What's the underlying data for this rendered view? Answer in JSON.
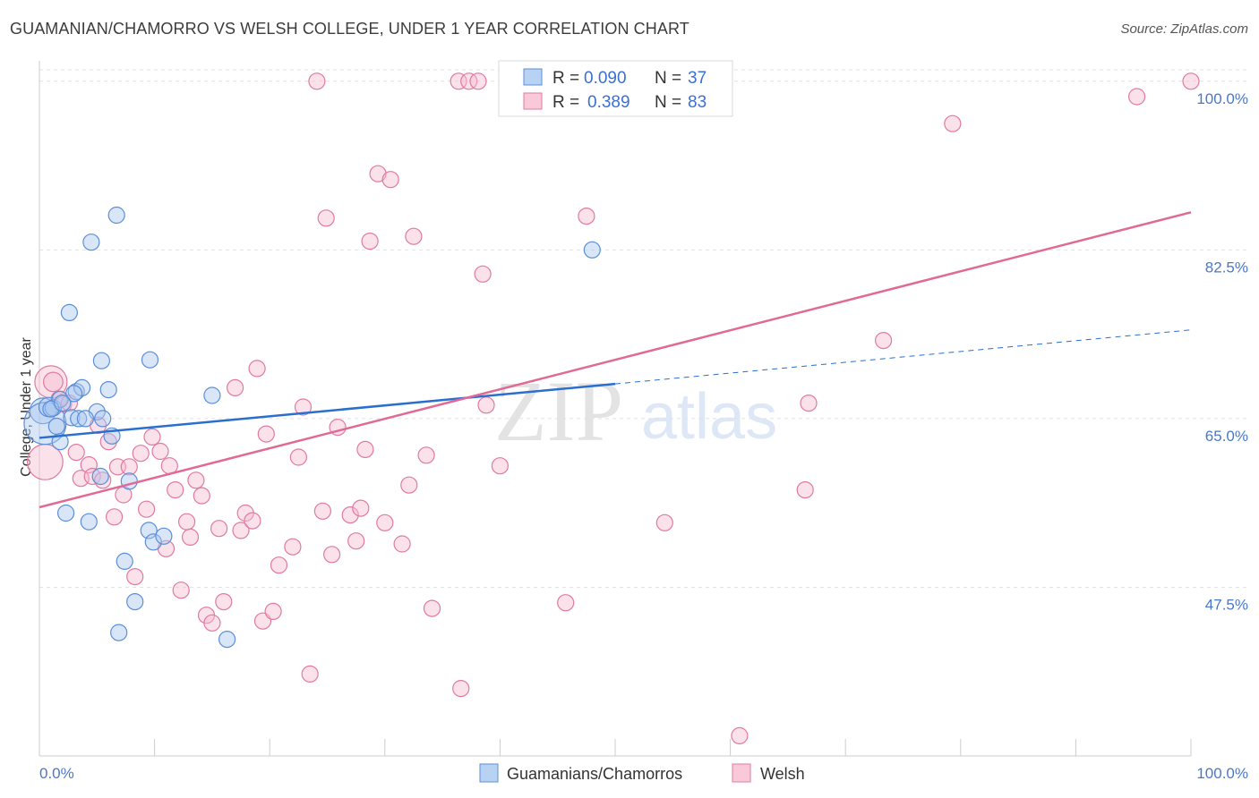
{
  "title": "GUAMANIAN/CHAMORRO VS WELSH COLLEGE, UNDER 1 YEAR CORRELATION CHART",
  "source": "Source: ZipAtlas.com",
  "watermark": {
    "zip": "ZIP",
    "atlas": "atlas"
  },
  "colors": {
    "blue_fill": "#aac7f0",
    "blue_stroke": "#5b8ed8",
    "blue_line": "#2a6fcf",
    "pink_fill": "#f6bcd0",
    "pink_stroke": "#e07aa0",
    "pink_line": "#e06a95",
    "grid": "#e2e2e2",
    "axis": "#cccccc",
    "accent_text": "#4a78c8"
  },
  "legend": {
    "entries": [
      {
        "r_label": "R =",
        "r_value": "0.090",
        "n_label": "N =",
        "n_value": "37",
        "series": "blue"
      },
      {
        "r_label": "R =",
        "r_value": "0.389",
        "n_label": "N =",
        "n_value": "83",
        "series": "pink"
      }
    ]
  },
  "chart_data": {
    "type": "scatter",
    "title": "GUAMANIAN/CHAMORRO VS WELSH COLLEGE, UNDER 1 YEAR CORRELATION CHART",
    "xlabel": "",
    "ylabel": "College, Under 1 year",
    "xlim": [
      0,
      100
    ],
    "ylim": [
      32,
      102
    ],
    "x_tick_labels": [
      "0.0%",
      "100.0%"
    ],
    "y_ticks": [
      47.5,
      65.0,
      82.5,
      100.0
    ],
    "y_tick_labels": [
      "47.5%",
      "65.0%",
      "82.5%",
      "100.0%"
    ],
    "legend_position": "top-center",
    "series": [
      {
        "name": "Guamanians/Chamorros",
        "color": "blue",
        "R": 0.09,
        "N": 37,
        "trend": {
          "x0": 0,
          "y0": 63.0,
          "x1": 50,
          "y1": 68.6,
          "dashed_to_x": 100,
          "dashed_to_y": 74.2
        },
        "points": [
          [
            0.3,
            65.8,
            1.6
          ],
          [
            0.5,
            64.5,
            2.6
          ],
          [
            0.8,
            66.2,
            1.2
          ],
          [
            1.2,
            66.1,
            1.0
          ],
          [
            1.5,
            64.2,
            1.0
          ],
          [
            1.8,
            62.6,
            1.0
          ],
          [
            1.8,
            67.0,
            1.0
          ],
          [
            2.3,
            55.2,
            1.0
          ],
          [
            2.6,
            76.0,
            1.0
          ],
          [
            2.8,
            65.1,
            1.0
          ],
          [
            3.2,
            67.8,
            1.0
          ],
          [
            3.7,
            68.2,
            1.0
          ],
          [
            3.4,
            65.0,
            1.0
          ],
          [
            4.3,
            54.3,
            1.0
          ],
          [
            4.5,
            83.3,
            1.0
          ],
          [
            5.0,
            65.7,
            1.0
          ],
          [
            5.3,
            59.0,
            1.0
          ],
          [
            5.4,
            71.0,
            1.0
          ],
          [
            5.5,
            65.0,
            1.0
          ],
          [
            6.0,
            68.0,
            1.0
          ],
          [
            6.3,
            63.2,
            1.0
          ],
          [
            6.7,
            86.1,
            1.0
          ],
          [
            6.9,
            42.8,
            1.0
          ],
          [
            7.4,
            50.2,
            1.0
          ],
          [
            7.8,
            58.5,
            1.0
          ],
          [
            8.3,
            46.0,
            1.0
          ],
          [
            9.5,
            53.4,
            1.0
          ],
          [
            9.6,
            71.1,
            1.0
          ],
          [
            9.9,
            52.2,
            1.0
          ],
          [
            10.8,
            52.8,
            1.0
          ],
          [
            15.0,
            67.4,
            1.0
          ],
          [
            16.3,
            42.1,
            1.0
          ],
          [
            48.0,
            82.5,
            1.0
          ],
          [
            3.0,
            67.6,
            1.0
          ],
          [
            1.0,
            66.0,
            1.0
          ],
          [
            2.0,
            66.6,
            1.0
          ],
          [
            4.0,
            65.0,
            1.0
          ]
        ]
      },
      {
        "name": "Welsh",
        "color": "pink",
        "R": 0.389,
        "N": 83,
        "trend": {
          "x0": 0,
          "y0": 55.8,
          "x1": 100,
          "y1": 86.4
        },
        "points": [
          [
            0.5,
            60.5,
            2.2
          ],
          [
            1.0,
            68.8,
            2.0
          ],
          [
            1.2,
            68.8,
            1.2
          ],
          [
            1.7,
            67.0,
            1.0
          ],
          [
            2.1,
            66.5,
            1.0
          ],
          [
            2.6,
            66.6,
            1.0
          ],
          [
            3.2,
            61.5,
            1.0
          ],
          [
            3.6,
            58.8,
            1.0
          ],
          [
            4.3,
            60.2,
            1.0
          ],
          [
            4.6,
            59.0,
            1.0
          ],
          [
            5.1,
            64.3,
            1.0
          ],
          [
            5.5,
            58.6,
            1.0
          ],
          [
            6.0,
            62.6,
            1.0
          ],
          [
            6.5,
            54.8,
            1.0
          ],
          [
            6.8,
            60.0,
            1.0
          ],
          [
            7.3,
            57.1,
            1.0
          ],
          [
            7.8,
            60.0,
            1.0
          ],
          [
            8.3,
            48.6,
            1.0
          ],
          [
            8.8,
            61.4,
            1.0
          ],
          [
            9.3,
            55.6,
            1.0
          ],
          [
            9.8,
            63.1,
            1.0
          ],
          [
            10.5,
            61.6,
            1.0
          ],
          [
            11.0,
            51.5,
            1.0
          ],
          [
            11.3,
            60.1,
            1.0
          ],
          [
            11.8,
            57.6,
            1.0
          ],
          [
            12.3,
            47.2,
            1.0
          ],
          [
            12.8,
            54.3,
            1.0
          ],
          [
            13.1,
            52.7,
            1.0
          ],
          [
            13.6,
            58.6,
            1.0
          ],
          [
            14.1,
            57.0,
            1.0
          ],
          [
            14.5,
            44.6,
            1.0
          ],
          [
            15.0,
            43.8,
            1.0
          ],
          [
            15.6,
            53.6,
            1.0
          ],
          [
            16.0,
            46.0,
            1.0
          ],
          [
            17.0,
            68.2,
            1.0
          ],
          [
            17.5,
            53.4,
            1.0
          ],
          [
            17.9,
            55.2,
            1.0
          ],
          [
            18.5,
            54.4,
            1.0
          ],
          [
            18.9,
            70.2,
            1.0
          ],
          [
            19.4,
            44.0,
            1.0
          ],
          [
            19.7,
            63.4,
            1.0
          ],
          [
            20.3,
            45.0,
            1.0
          ],
          [
            20.8,
            49.8,
            1.0
          ],
          [
            22.0,
            51.7,
            1.0
          ],
          [
            22.5,
            61.0,
            1.0
          ],
          [
            22.9,
            66.2,
            1.0
          ],
          [
            23.5,
            38.5,
            1.0
          ],
          [
            24.1,
            100.0,
            1.0
          ],
          [
            24.6,
            55.4,
            1.0
          ],
          [
            24.9,
            85.8,
            1.0
          ],
          [
            25.4,
            50.9,
            1.0
          ],
          [
            25.9,
            64.1,
            1.0
          ],
          [
            27.0,
            55.0,
            1.0
          ],
          [
            27.5,
            52.3,
            1.0
          ],
          [
            27.9,
            55.7,
            1.0
          ],
          [
            28.3,
            61.8,
            1.0
          ],
          [
            28.7,
            83.4,
            1.0
          ],
          [
            29.4,
            90.4,
            1.0
          ],
          [
            30.0,
            54.2,
            1.0
          ],
          [
            30.5,
            89.8,
            1.0
          ],
          [
            31.5,
            52.0,
            1.0
          ],
          [
            32.1,
            58.1,
            1.0
          ],
          [
            32.5,
            83.9,
            1.0
          ],
          [
            33.6,
            61.2,
            1.0
          ],
          [
            34.1,
            45.3,
            1.0
          ],
          [
            36.4,
            100.0,
            1.0
          ],
          [
            36.6,
            37.0,
            1.0
          ],
          [
            37.3,
            100.0,
            1.0
          ],
          [
            38.1,
            100.0,
            1.0
          ],
          [
            38.5,
            80.0,
            1.0
          ],
          [
            38.8,
            66.4,
            1.0
          ],
          [
            40.0,
            60.1,
            1.0
          ],
          [
            41.0,
            100.0,
            1.0
          ],
          [
            45.7,
            45.9,
            1.0
          ],
          [
            47.5,
            86.0,
            1.0
          ],
          [
            54.3,
            54.2,
            1.0
          ],
          [
            60.8,
            32.1,
            1.0
          ],
          [
            66.5,
            57.6,
            1.0
          ],
          [
            66.8,
            66.6,
            1.0
          ],
          [
            73.3,
            73.1,
            1.0
          ],
          [
            79.3,
            95.6,
            1.0
          ],
          [
            95.3,
            98.4,
            1.0
          ],
          [
            100.0,
            100.0,
            1.0
          ]
        ]
      }
    ]
  }
}
